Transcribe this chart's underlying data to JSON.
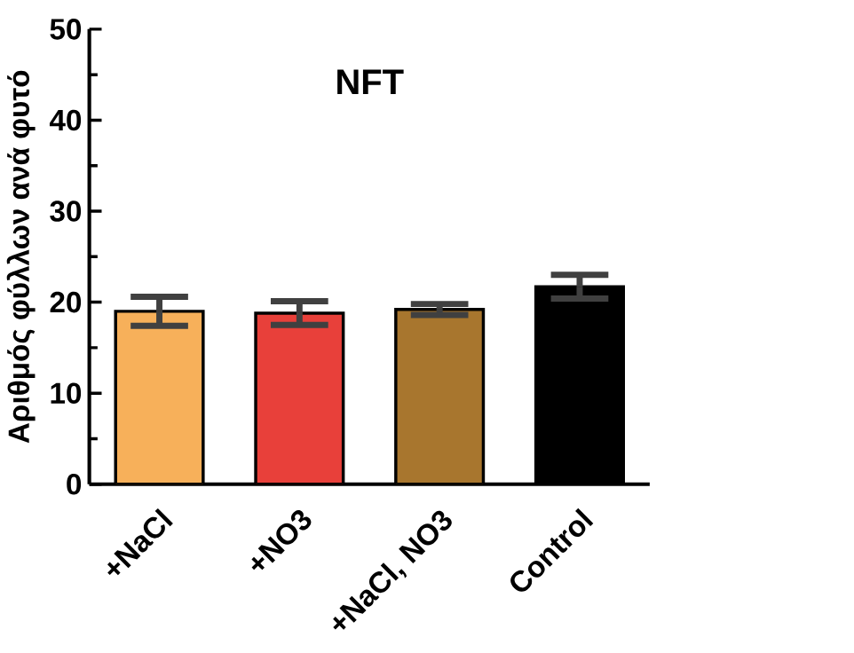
{
  "chart_data": {
    "type": "bar",
    "title": "NFT",
    "ylabel": "Αριθμός φύλλων ανά φυτό",
    "categories": [
      "+NaCl",
      "+NO3",
      "+NaCl, NO3",
      "Control"
    ],
    "values": [
      19.0,
      18.8,
      19.2,
      21.7
    ],
    "errors": [
      1.6,
      1.3,
      0.6,
      1.3
    ],
    "colors": [
      "#f7b05a",
      "#e8403a",
      "#a8762e",
      "#000000"
    ],
    "ylim": [
      0,
      50
    ],
    "yticks": [
      0,
      10,
      20,
      30,
      40,
      50
    ],
    "grid": false
  }
}
